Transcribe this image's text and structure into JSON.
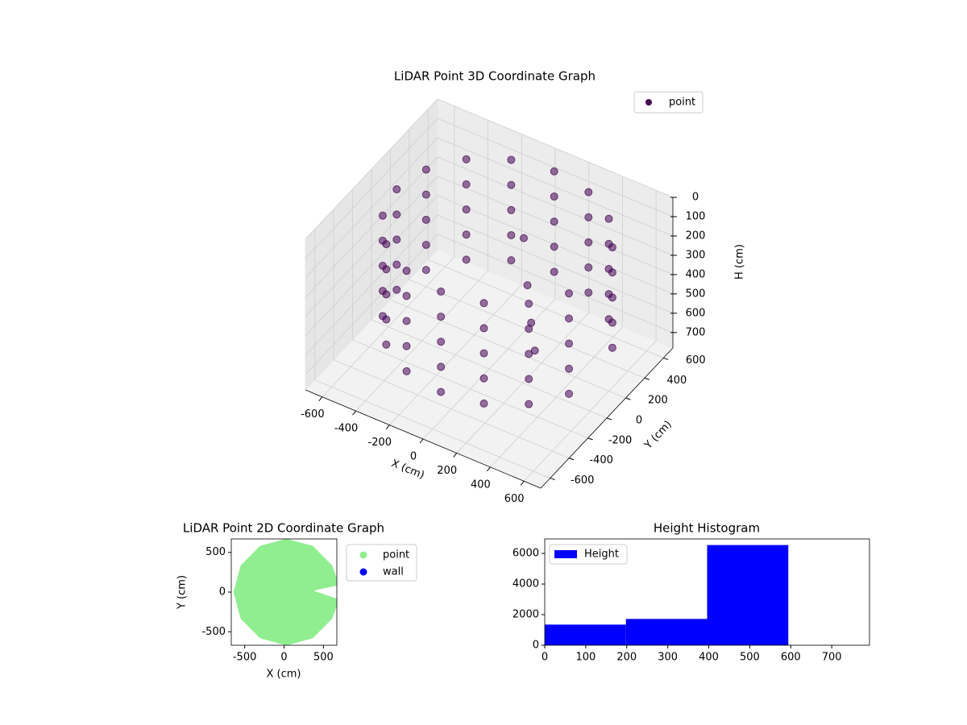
{
  "chart_data": [
    {
      "type": "scatter3d",
      "title": "LiDAR Point 3D Coordinate Graph",
      "xlabel": "X (cm)",
      "ylabel": "Y (cm)",
      "zlabel": "H (cm)",
      "xlim": [
        -700,
        700
      ],
      "ylim": [
        -700,
        700
      ],
      "zlim": [
        780,
        0
      ],
      "xticks": [
        -600,
        -400,
        -200,
        0,
        200,
        400,
        600
      ],
      "yticks": [
        -600,
        -400,
        -200,
        0,
        200,
        400,
        600
      ],
      "zticks": [
        0,
        100,
        200,
        300,
        400,
        500,
        600,
        700
      ],
      "legend": "upper right",
      "series": [
        {
          "name": "point",
          "color": "#440154",
          "x": [
            604,
            474,
            280,
            50,
            -180,
            -374,
            -504,
            -550,
            -504,
            -374,
            -180,
            50,
            280,
            474,
            604,
            604,
            474,
            280,
            50,
            -180,
            -374,
            -504,
            -550,
            -504,
            -374,
            -180,
            50,
            280,
            474,
            604,
            604,
            474,
            280,
            50,
            -180,
            -374,
            -504,
            -550,
            -504,
            -374,
            -180,
            50,
            280,
            474,
            604,
            604,
            474,
            280,
            50,
            -180,
            -374,
            -504,
            -550,
            -504,
            -374,
            -180,
            50,
            280,
            474,
            604,
            604,
            474,
            280,
            50,
            -180,
            -374,
            -504,
            -550,
            -504,
            -374,
            -180,
            50,
            280,
            474,
            604,
            150,
            200,
            250,
            300
          ],
          "y": [
            230,
            424,
            554,
            600,
            554,
            424,
            230,
            0,
            -230,
            -424,
            -554,
            -600,
            -554,
            -424,
            -230,
            230,
            424,
            554,
            600,
            554,
            424,
            230,
            0,
            -230,
            -424,
            -554,
            -600,
            -554,
            -424,
            -230,
            230,
            424,
            554,
            600,
            554,
            424,
            230,
            0,
            -230,
            -424,
            -554,
            -600,
            -554,
            -424,
            -230,
            230,
            424,
            554,
            600,
            554,
            424,
            230,
            0,
            -230,
            -424,
            -554,
            -600,
            -554,
            -424,
            -230,
            230,
            424,
            554,
            600,
            554,
            424,
            230,
            0,
            -230,
            -424,
            -554,
            -600,
            -554,
            -424,
            -230,
            100,
            50,
            0,
            -50
          ],
          "z": [
            50,
            50,
            50,
            50,
            50,
            50,
            50,
            50,
            50,
            50,
            50,
            50,
            50,
            50,
            50,
            180,
            180,
            180,
            180,
            180,
            180,
            180,
            180,
            180,
            180,
            180,
            180,
            180,
            180,
            180,
            310,
            310,
            310,
            310,
            310,
            310,
            310,
            310,
            310,
            310,
            310,
            310,
            310,
            310,
            310,
            440,
            440,
            440,
            440,
            440,
            440,
            440,
            440,
            440,
            440,
            440,
            440,
            440,
            440,
            440,
            570,
            570,
            570,
            570,
            570,
            570,
            570,
            570,
            570,
            570,
            570,
            570,
            570,
            570,
            570,
            100,
            300,
            450,
            550
          ]
        }
      ]
    },
    {
      "type": "scatter",
      "title": "LiDAR Point 2D Coordinate Graph",
      "xlabel": "X (cm)",
      "ylabel": "Y (cm)",
      "xlim": [
        -670,
        670
      ],
      "ylim": [
        -670,
        670
      ],
      "xticks": [
        -500,
        0,
        500
      ],
      "yticks": [
        -500,
        0,
        500
      ],
      "legend": "outside upper right",
      "series": [
        {
          "name": "point",
          "color": "#90ee90",
          "x": [
            660,
            584,
            350,
            30,
            -290,
            -524,
            -610,
            -524,
            -290,
            30,
            350,
            584,
            660,
            420,
            280,
            420
          ],
          "y": [
            111,
            320,
            554,
            640,
            554,
            320,
            0,
            -320,
            -554,
            -640,
            -554,
            -320,
            -111,
            -30,
            0,
            60
          ]
        },
        {
          "name": "wall",
          "color": "#0000ff",
          "x": [],
          "y": []
        }
      ]
    },
    {
      "type": "histogram",
      "title": "Height Histogram",
      "bins": [
        0,
        198,
        396,
        594,
        792
      ],
      "xlim": [
        0,
        792
      ],
      "ylim": [
        0,
        6950
      ],
      "xticks": [
        0,
        100,
        200,
        300,
        400,
        500,
        600,
        700
      ],
      "yticks": [
        0,
        2000,
        4000,
        6000
      ],
      "legend": "upper left",
      "series": [
        {
          "name": "Height",
          "color": "#0000ff",
          "values": [
            1350,
            1720,
            6550,
            10
          ]
        }
      ]
    }
  ]
}
